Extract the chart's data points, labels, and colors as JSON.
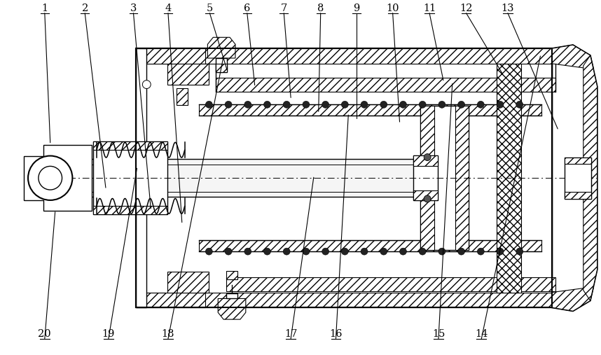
{
  "bg_color": "#ffffff",
  "line_color": "#000000",
  "fig_width": 8.58,
  "fig_height": 5.07,
  "dpi": 100,
  "top_labels": [
    [
      "1",
      60,
      488,
      68,
      305
    ],
    [
      "2",
      118,
      488,
      148,
      240
    ],
    [
      "3",
      188,
      488,
      213,
      210
    ],
    [
      "4",
      238,
      488,
      258,
      190
    ],
    [
      "5",
      298,
      488,
      323,
      410
    ],
    [
      "6",
      352,
      488,
      363,
      388
    ],
    [
      "7",
      405,
      488,
      415,
      370
    ],
    [
      "8",
      458,
      488,
      455,
      350
    ],
    [
      "9",
      510,
      488,
      510,
      340
    ],
    [
      "10",
      562,
      488,
      572,
      335
    ],
    [
      "11",
      615,
      488,
      635,
      395
    ],
    [
      "12",
      668,
      488,
      720,
      405
    ],
    [
      "13",
      728,
      488,
      800,
      325
    ]
  ],
  "bottom_labels": [
    [
      "20",
      60,
      18,
      75,
      205
    ],
    [
      "19",
      152,
      18,
      193,
      268
    ],
    [
      "18",
      238,
      18,
      318,
      430
    ],
    [
      "17",
      415,
      18,
      448,
      255
    ],
    [
      "16",
      480,
      18,
      498,
      345
    ],
    [
      "15",
      628,
      18,
      648,
      390
    ],
    [
      "14",
      690,
      18,
      775,
      430
    ]
  ]
}
